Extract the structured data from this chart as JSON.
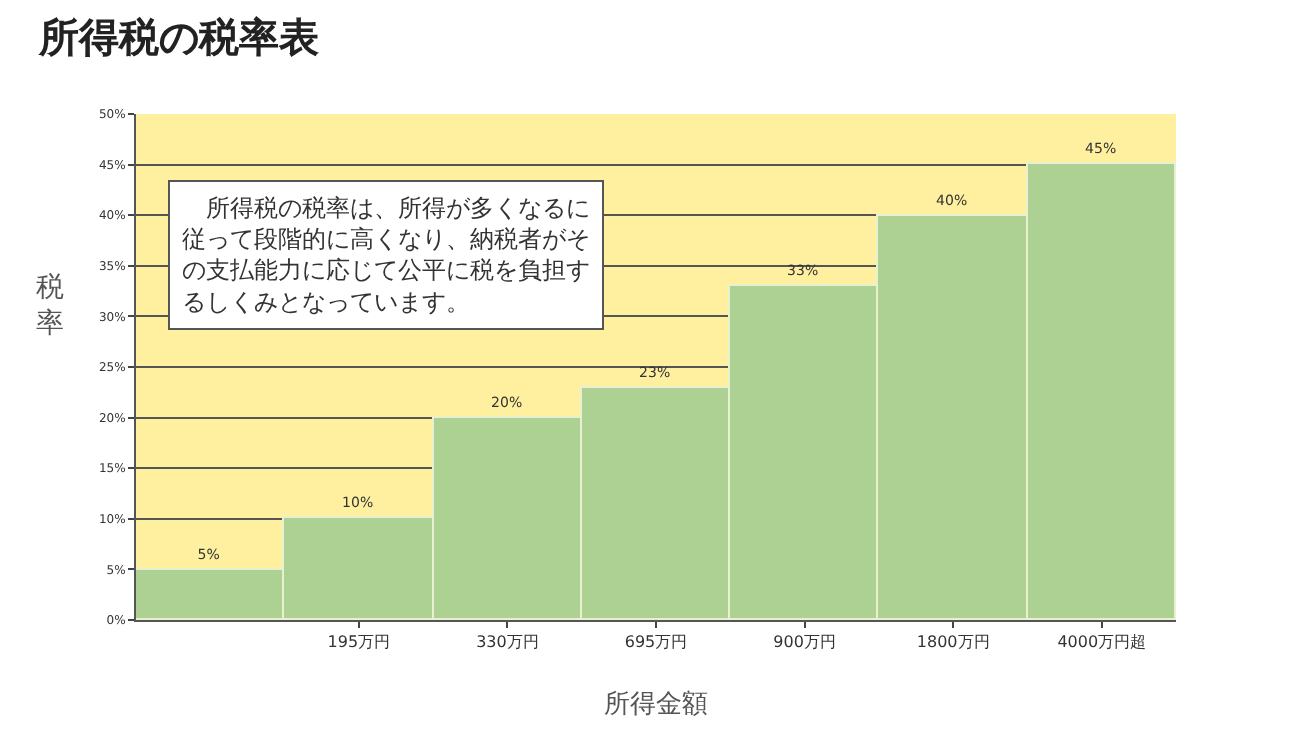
{
  "chart_data": {
    "type": "bar",
    "title": "所得税の税率表",
    "xlabel": "所得金額",
    "ylabel": "税率",
    "categories": [
      null,
      "195万円",
      "330万円",
      "695万円",
      "900万円",
      "1800万円",
      "4000万円超"
    ],
    "values": [
      5,
      10,
      20,
      23,
      33,
      40,
      45
    ],
    "value_labels": [
      "5%",
      "10%",
      "20%",
      "23%",
      "33%",
      "40%",
      "45%"
    ],
    "color": "#acd193",
    "ylim": [
      0,
      50
    ],
    "yticks": [
      {
        "value": 0,
        "label": "0%"
      },
      {
        "value": 5,
        "label": "5%"
      },
      {
        "value": 10,
        "label": "10%"
      },
      {
        "value": 15,
        "label": "15%"
      },
      {
        "value": 20,
        "label": "20%"
      },
      {
        "value": 25,
        "label": "25%"
      },
      {
        "value": 30,
        "label": "30%"
      },
      {
        "value": 35,
        "label": "35%"
      },
      {
        "value": 40,
        "label": "40%"
      },
      {
        "value": 45,
        "label": "45%"
      },
      {
        "value": 50,
        "label": "50%"
      }
    ],
    "grid": "y",
    "bands": [
      {
        "axis": "y",
        "from": 0,
        "to": 50,
        "color": "#fff0a0"
      }
    ],
    "annotations": [
      "　所得税の税率は、所得が多くなるに従って段階的に高くなり、納税者がその支払能力に応じて公平に税を負担するしくみとなっています。"
    ]
  }
}
